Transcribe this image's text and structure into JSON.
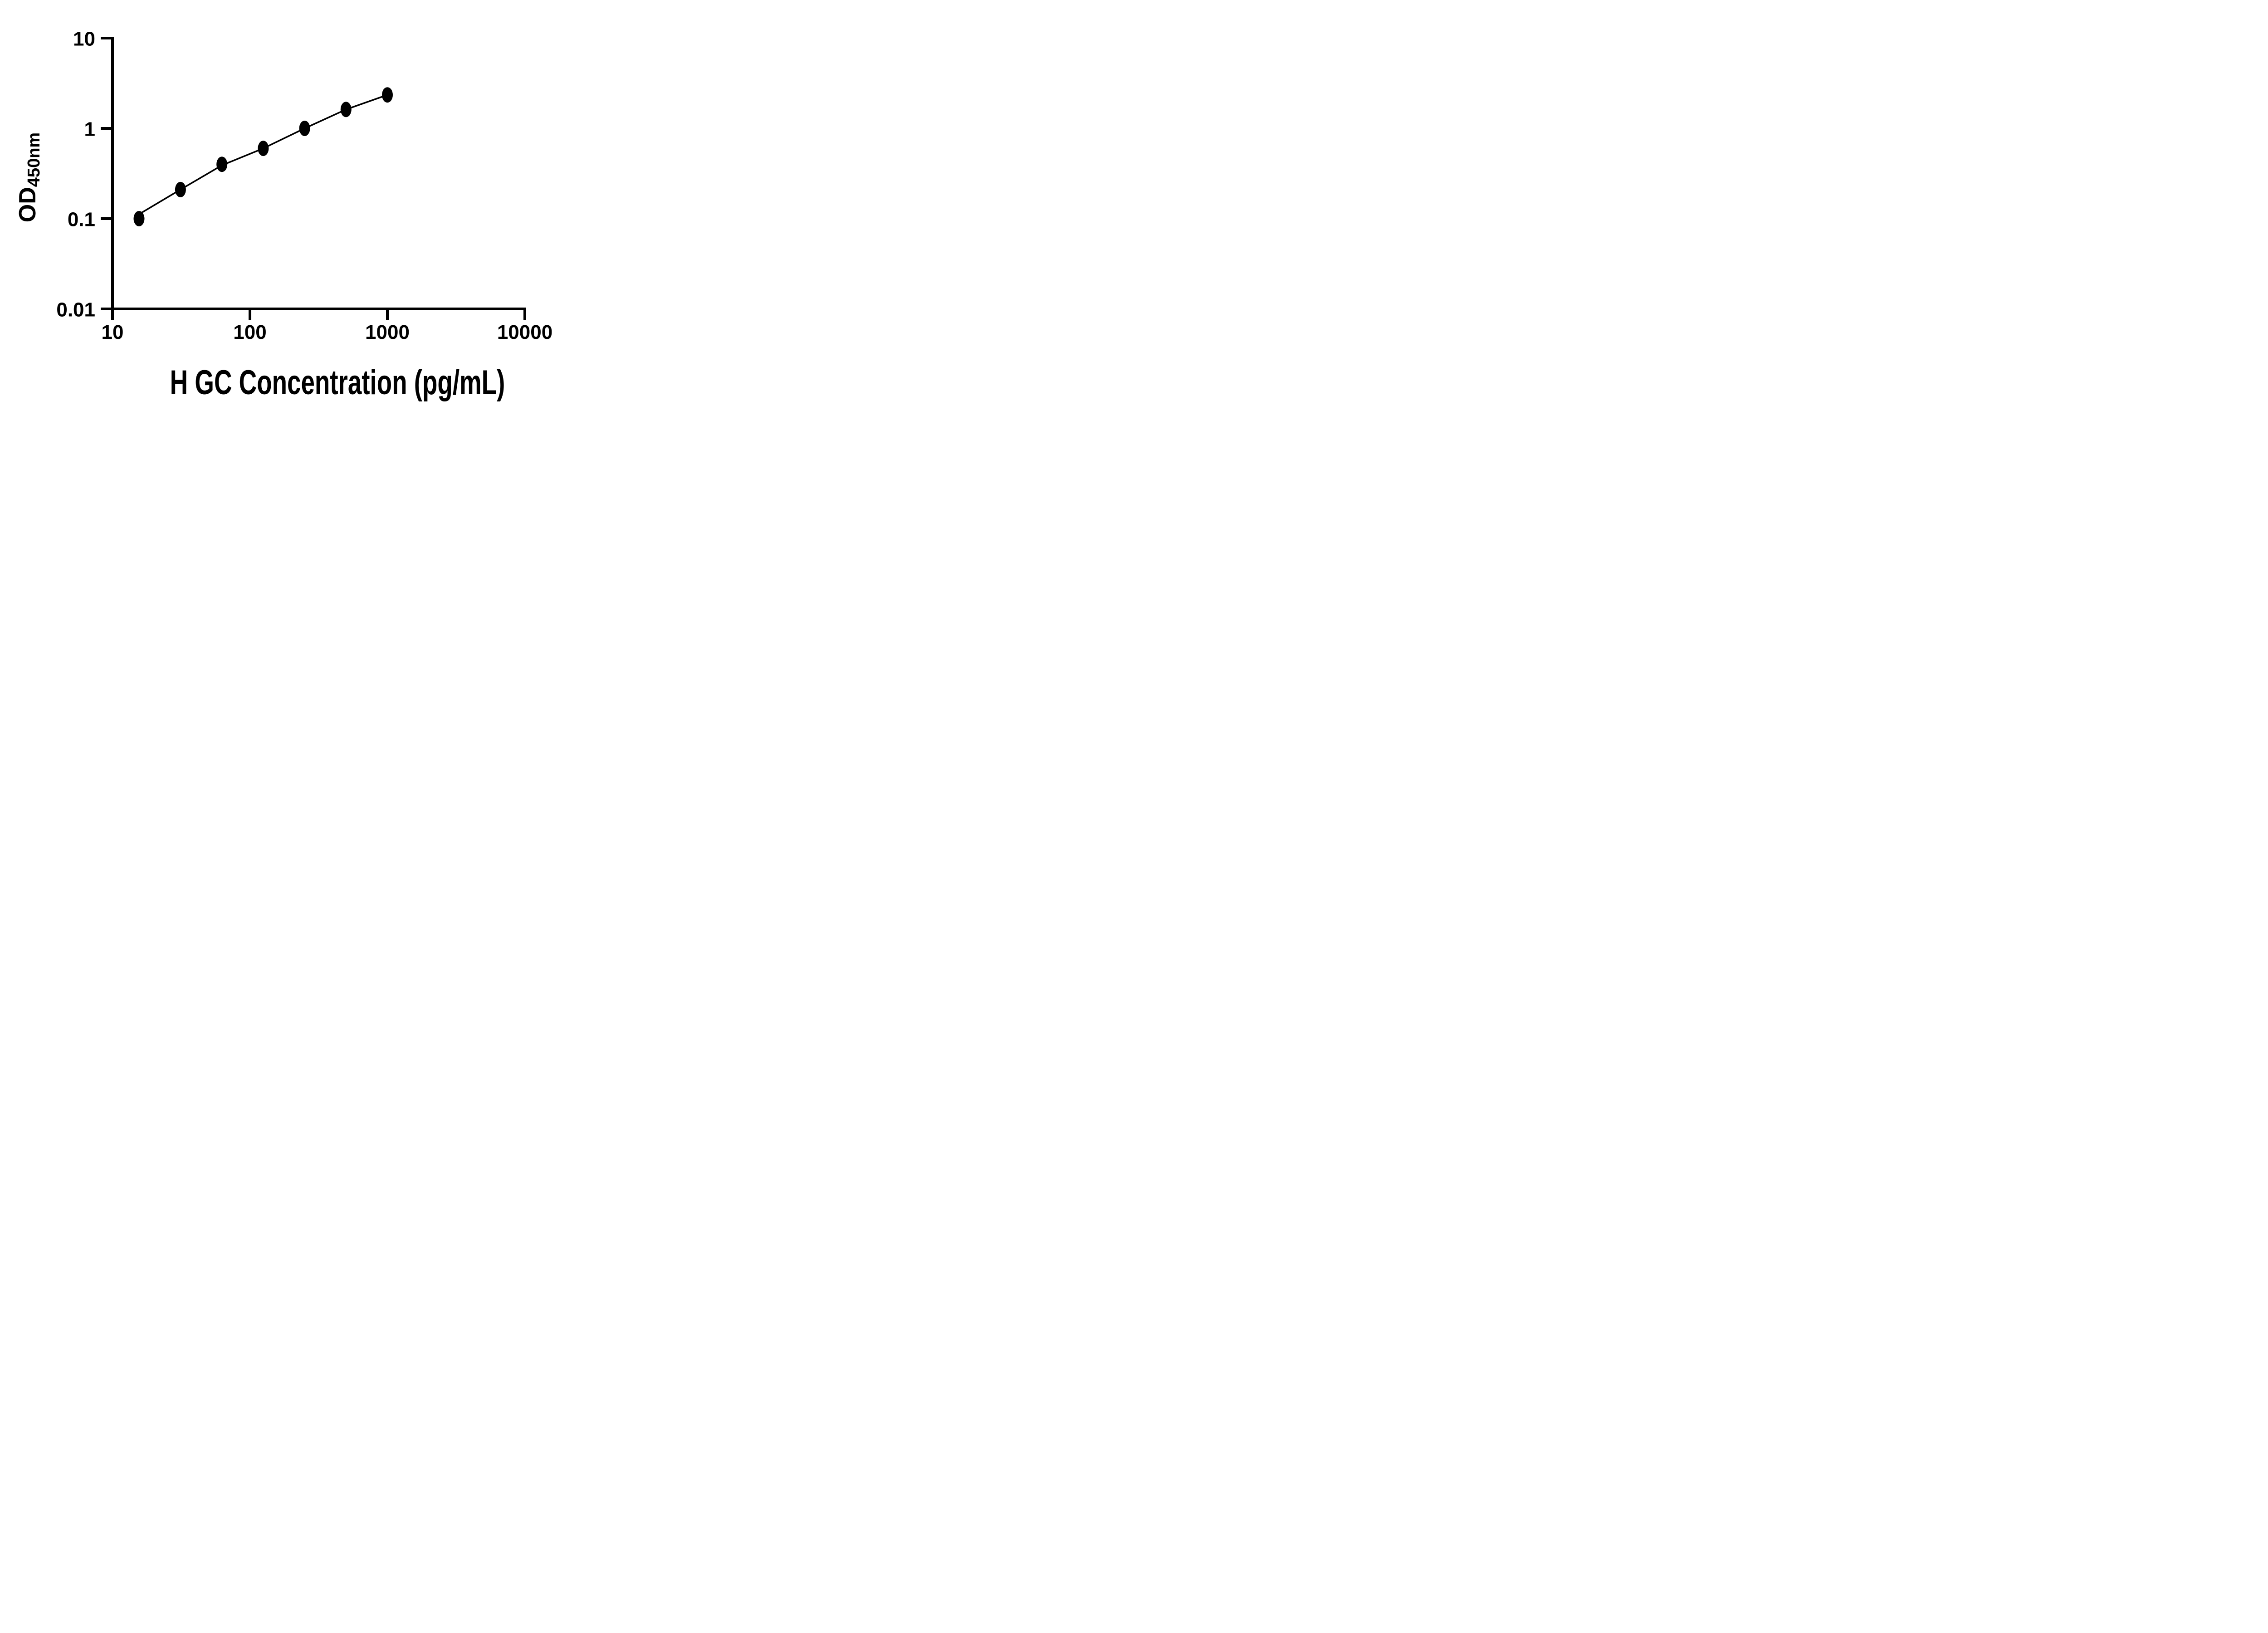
{
  "chart_data": {
    "type": "scatter",
    "title": "",
    "xlabel": "H GC Concentration (pg/mL)",
    "ylabel": "OD",
    "ylabel_subscript": "450nm",
    "x_scale": "log10",
    "y_scale": "log10",
    "xlim": [
      10,
      10000
    ],
    "ylim": [
      0.01,
      10
    ],
    "grid": false,
    "legend_position": "none",
    "axis_color": "#000000",
    "background_color": "#ffffff",
    "marker_color": "#000000",
    "line_color": "#000000",
    "x_ticks": [
      {
        "v": 10,
        "label": "10"
      },
      {
        "v": 100,
        "label": "100"
      },
      {
        "v": 1000,
        "label": "1000"
      },
      {
        "v": 10000,
        "label": "10000"
      }
    ],
    "y_ticks": [
      {
        "v": 10,
        "label": "10"
      },
      {
        "v": 1,
        "label": "1"
      },
      {
        "v": 0.1,
        "label": "0.1"
      },
      {
        "v": 0.01,
        "label": "0.01"
      }
    ],
    "series": [
      {
        "name": "standard-points",
        "type": "scatter",
        "marker": "filled-ellipse",
        "color": "#000000",
        "x": [
          15.6,
          31.25,
          62.5,
          125,
          250,
          500,
          1000
        ],
        "y": [
          0.1,
          0.21,
          0.4,
          0.6,
          1.0,
          1.62,
          2.35
        ]
      },
      {
        "name": "fit-line",
        "type": "line",
        "color": "#000000",
        "x": [
          15.6,
          31.25,
          62.5,
          125,
          250,
          500,
          1000
        ],
        "y": [
          0.112,
          0.21,
          0.39,
          0.6,
          1.0,
          1.62,
          2.35
        ]
      }
    ]
  }
}
